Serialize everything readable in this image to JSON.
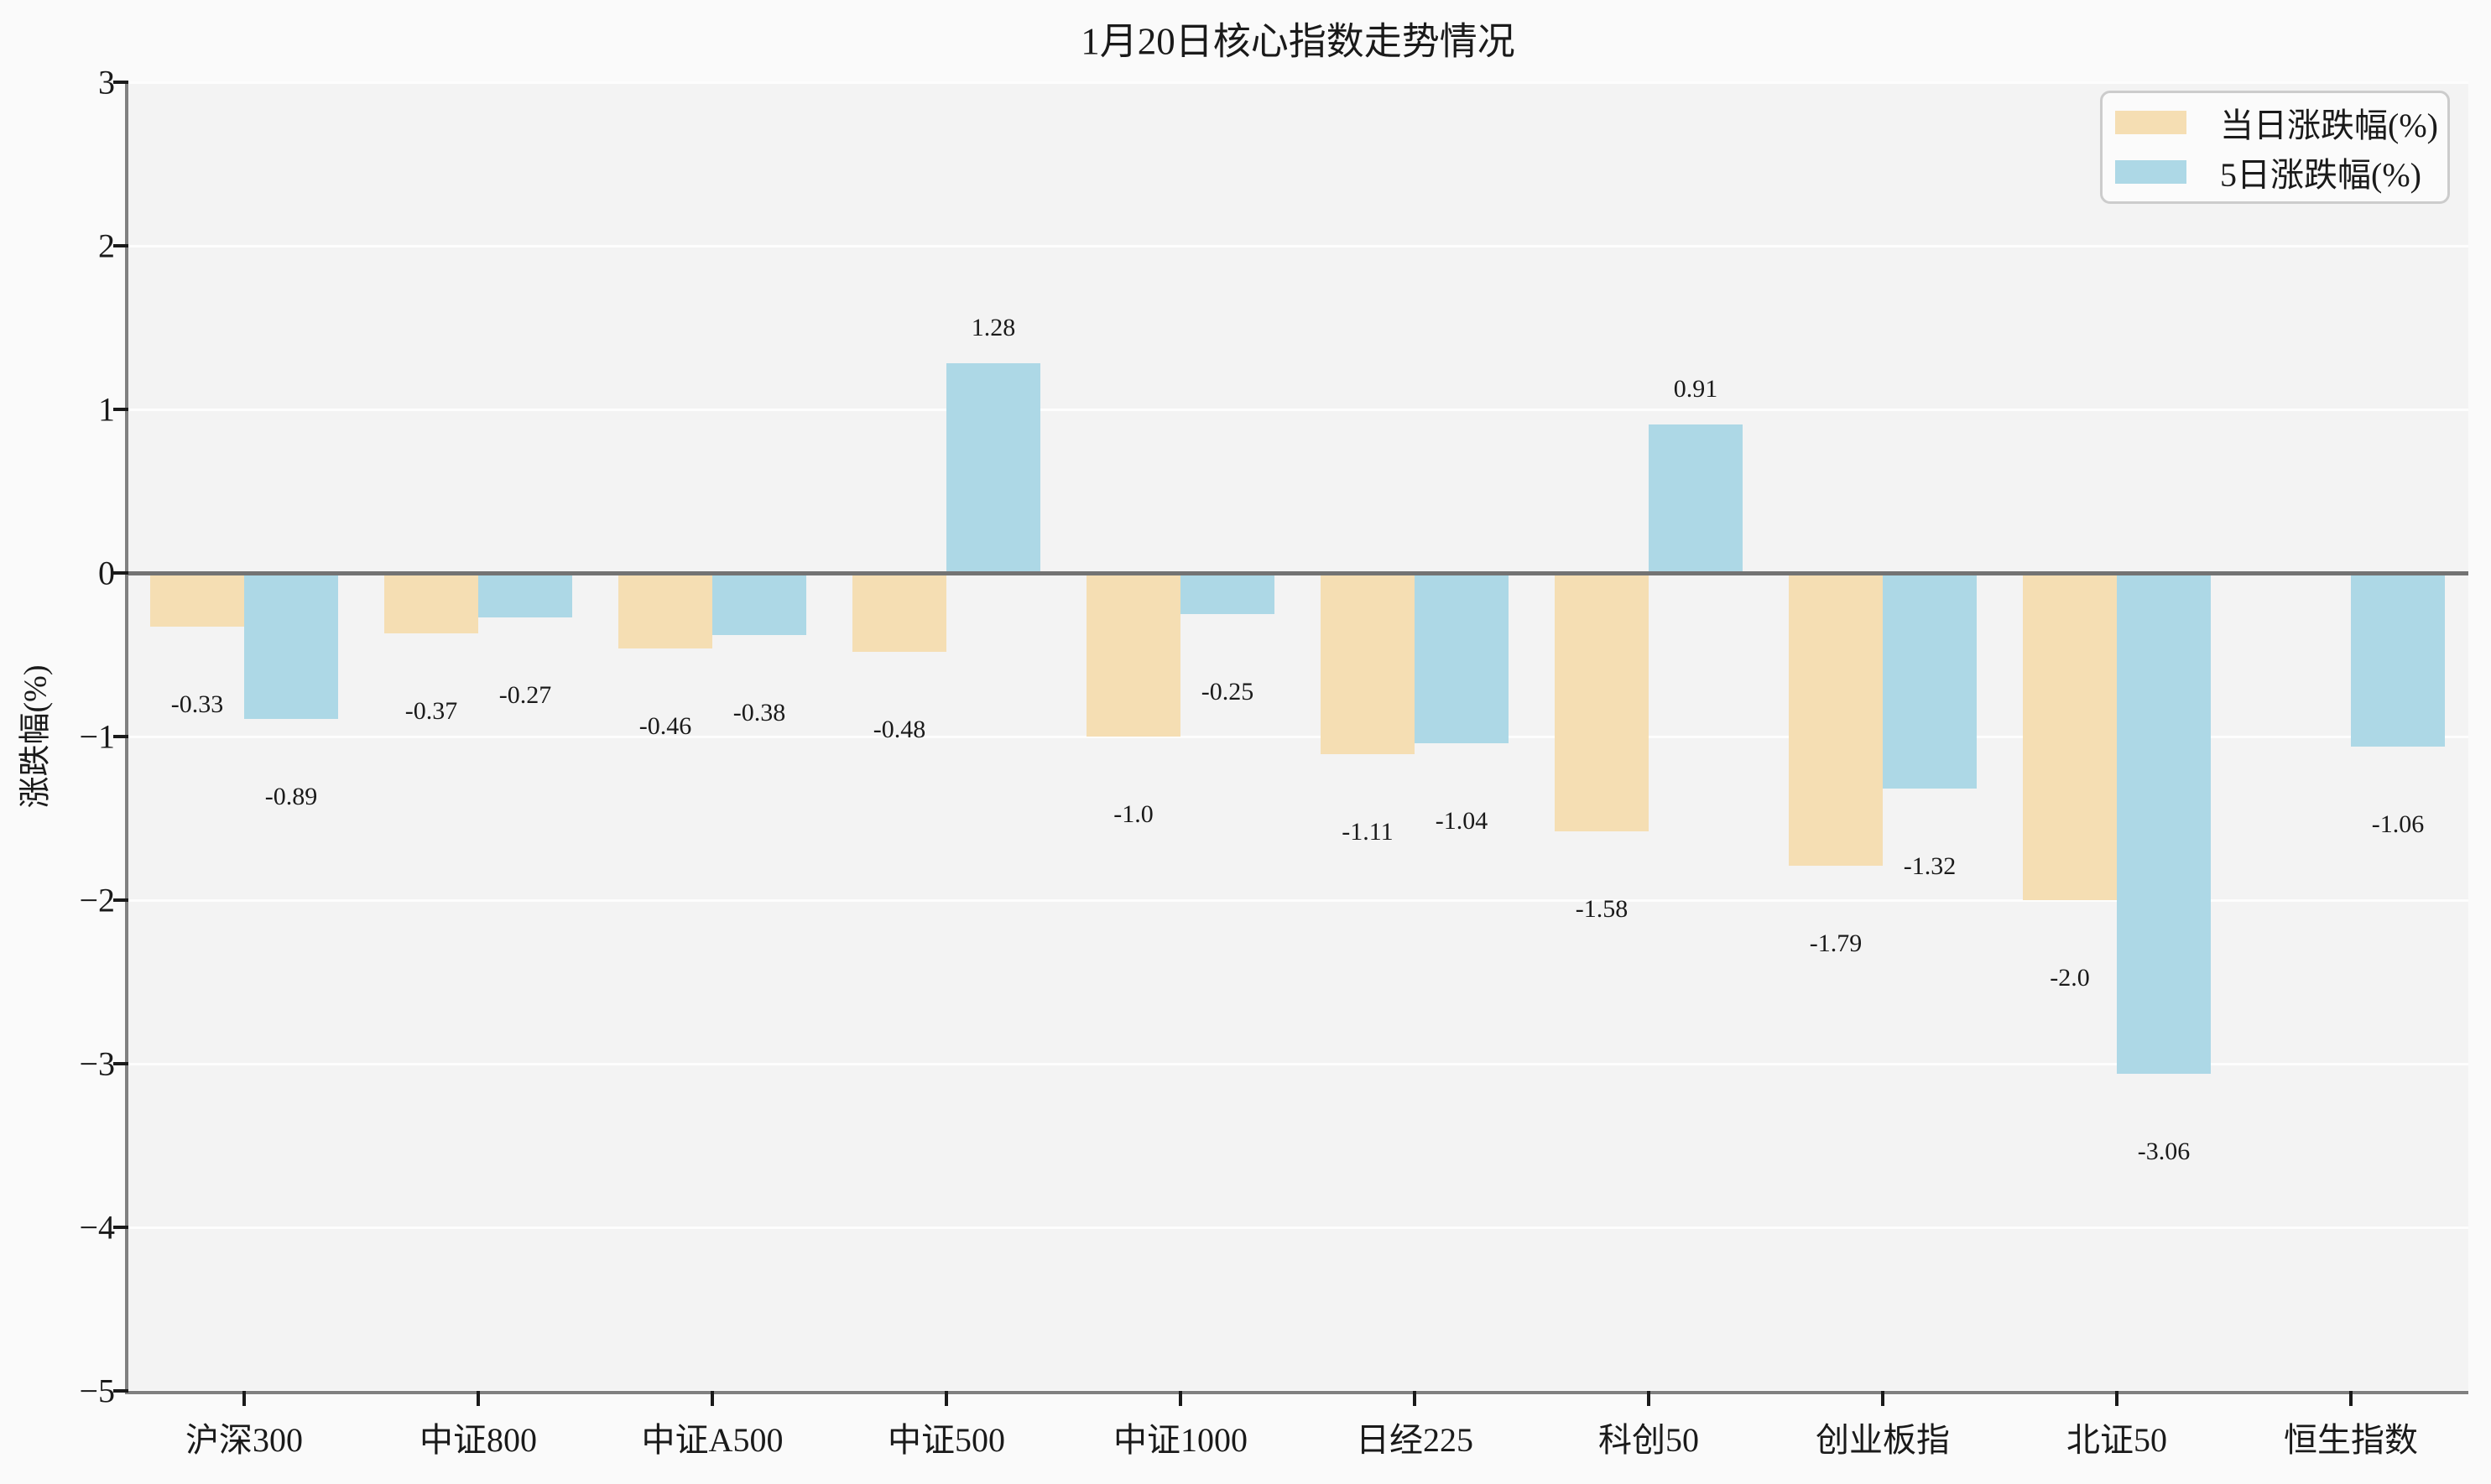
{
  "title": "1月20日核心指数走势情况",
  "ylabel": "涨跌幅(%)",
  "colors": {
    "daily_bar": "#F5DEB3",
    "five_day_bar": "#ADD8E6",
    "axes_background": "#f3f3f3",
    "figure_background": "#fafafa",
    "zero_line": "#737373",
    "spine": "#808080",
    "gridline": "#fdfdfd"
  },
  "legend": {
    "items": [
      {
        "label": "当日涨跌幅(%)",
        "color": "#F5DEB3"
      },
      {
        "label": "5日涨跌幅(%)",
        "color": "#ADD8E6"
      }
    ]
  },
  "chart_data": {
    "type": "bar",
    "title": "1月20日核心指数走势情况",
    "xlabel": "",
    "ylabel": "涨跌幅(%)",
    "categories": [
      "沪深300",
      "中证800",
      "中证A500",
      "中证500",
      "中证1000",
      "日经225",
      "科创50",
      "创业板指",
      "北证50",
      "恒生指数"
    ],
    "series": [
      {
        "name": "当日涨跌幅(%)",
        "color": "#F5DEB3",
        "values": [
          -0.33,
          -0.37,
          -0.46,
          -0.48,
          -1.0,
          -1.11,
          -1.58,
          -1.79,
          -2.0,
          null
        ],
        "labels": [
          "-0.33",
          "-0.37",
          "-0.46",
          "-0.48",
          "-1.0",
          "-1.11",
          "-1.58",
          "-1.79",
          "-2.0",
          null
        ]
      },
      {
        "name": "5日涨跌幅(%)",
        "color": "#ADD8E6",
        "values": [
          -0.89,
          -0.27,
          -0.38,
          1.28,
          -0.25,
          -1.04,
          0.91,
          -1.32,
          -3.06,
          -1.06
        ],
        "labels": [
          "-0.89",
          "-0.27",
          "-0.38",
          "1.28",
          "-0.25",
          "-1.04",
          "0.91",
          "-1.32",
          "-3.06",
          "-1.06"
        ]
      }
    ],
    "ylim": [
      -5,
      3
    ],
    "yticks": {
      "values": [
        3,
        2,
        1,
        0,
        -1,
        -2,
        -3,
        -4,
        -5
      ],
      "labels": [
        "3",
        "2",
        "1",
        "0",
        "−1",
        "−2",
        "−3",
        "−4",
        "−5"
      ]
    },
    "grid": true,
    "legend_position": "upper right"
  }
}
